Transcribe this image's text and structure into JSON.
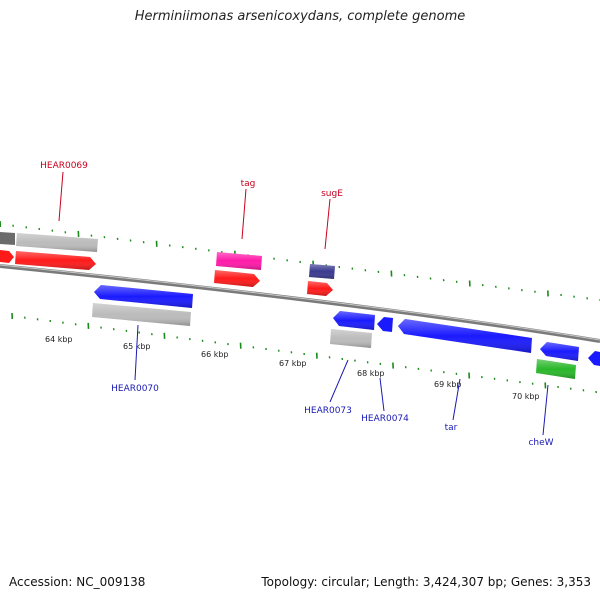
{
  "title": "Herminiimonas arsenicoxydans, complete genome",
  "footer": {
    "accession": "Accession: NC_009138",
    "summary": "Topology: circular; Length: 3,424,307 bp; Genes: 3,353"
  },
  "colors": {
    "backbone": "#7a7a7a",
    "ticks": "#1a8a1a",
    "top_label": "#c8001e",
    "bottom_label": "#1a1ab4",
    "red": "#ff1a1a",
    "blue": "#1a1aff",
    "gray": "#bbbbbb",
    "pink": "#ff1aa8",
    "navy": "#3a3a90",
    "green": "#2ab82a"
  },
  "kbp_labels": [
    {
      "text": "64 kbp",
      "kbp": 64
    },
    {
      "text": "65 kbp",
      "kbp": 65
    },
    {
      "text": "66 kbp",
      "kbp": 66
    },
    {
      "text": "67 kbp",
      "kbp": 67
    },
    {
      "text": "68 kbp",
      "kbp": 68
    },
    {
      "text": "69 kbp",
      "kbp": 69
    },
    {
      "text": "70 kbp",
      "kbp": 70
    }
  ],
  "gene_labels": [
    {
      "name": "HEAR0069",
      "strand": "top"
    },
    {
      "name": "tag",
      "strand": "top"
    },
    {
      "name": "sugE",
      "strand": "top"
    },
    {
      "name": "HEAR0070",
      "strand": "bottom"
    },
    {
      "name": "HEAR0073",
      "strand": "bottom"
    },
    {
      "name": "HEAR0074",
      "strand": "bottom"
    },
    {
      "name": "tar",
      "strand": "bottom"
    },
    {
      "name": "cheW",
      "strand": "bottom"
    }
  ]
}
